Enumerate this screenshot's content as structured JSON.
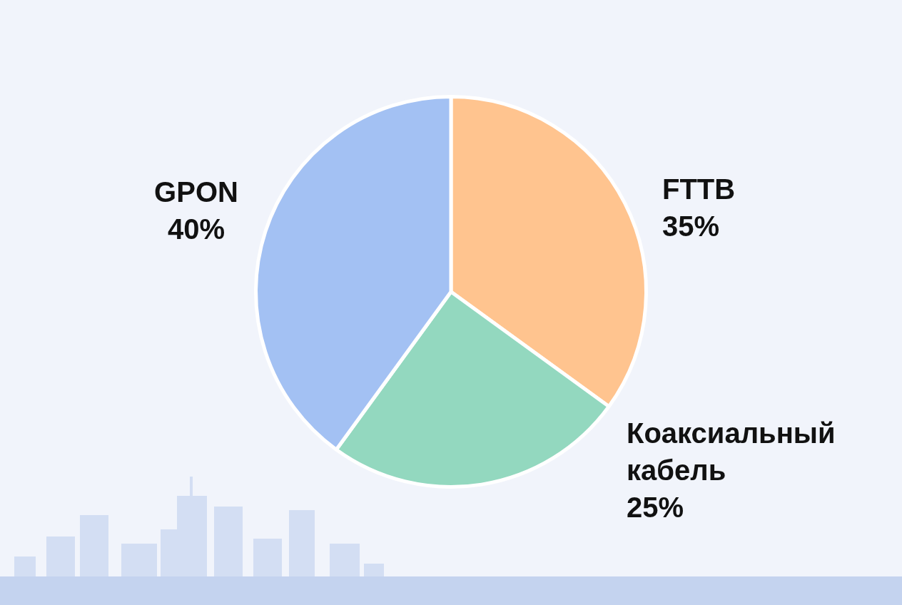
{
  "chart_data": {
    "type": "pie",
    "categories": [
      "FTTB",
      "Коаксиальный кабель",
      "GPON"
    ],
    "values": [
      35,
      25,
      40
    ],
    "value_labels": [
      "35%",
      "25%",
      "40%"
    ],
    "colors": [
      "#ffc48f",
      "#93d8bf",
      "#a3c1f3"
    ],
    "data_labels": true
  }
}
